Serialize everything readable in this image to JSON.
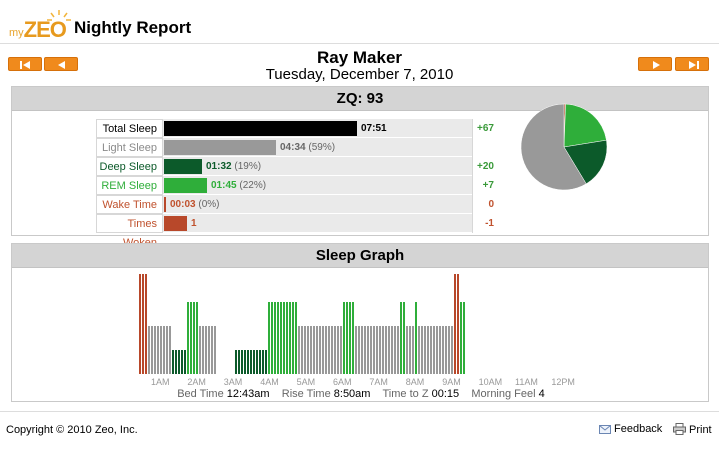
{
  "app": {
    "logo_prefix": "my",
    "logo_brand": "ZEO",
    "title": "Nightly Report"
  },
  "person": "Ray Maker",
  "date": "Tuesday, December 7, 2010",
  "nav": {
    "first_icon": "skip-back-icon",
    "prev_icon": "arrow-left-icon",
    "next_icon": "arrow-right-icon",
    "last_icon": "skip-forward-icon",
    "button_color": "#f08a1c"
  },
  "zq": {
    "label": "ZQ: 93"
  },
  "stats": [
    {
      "label": "Total Sleep",
      "value": "07:51",
      "pct": "",
      "delta": "+67",
      "color": "#000000",
      "label_color": "#000000",
      "delta_color": "#3a9a3a",
      "fraction": 1.0
    },
    {
      "label": "Light Sleep",
      "value": "04:34",
      "pct": "(59%)",
      "delta": "",
      "color": "#999999",
      "label_color": "#8a8a8a",
      "delta_color": "#3a9a3a",
      "fraction": 0.58
    },
    {
      "label": "Deep Sleep",
      "value": "01:32",
      "pct": "(19%)",
      "delta": "+20",
      "color": "#0c5a2a",
      "label_color": "#0c5a2a",
      "delta_color": "#3a9a3a",
      "fraction": 0.195
    },
    {
      "label": "REM Sleep",
      "value": "01:45",
      "pct": "(22%)",
      "delta": "+7",
      "color": "#2fae3a",
      "label_color": "#2fae3a",
      "delta_color": "#3a9a3a",
      "fraction": 0.223
    },
    {
      "label": "Wake Time",
      "value": "00:03",
      "pct": "(0%)",
      "delta": "0",
      "color": "#b8482a",
      "label_color": "#c0522e",
      "delta_color": "#c0522e",
      "fraction": 0.006
    },
    {
      "label": "Times Woken",
      "value": "1",
      "pct": "",
      "delta": "-1",
      "color": "#b8482a",
      "label_color": "#c0522e",
      "delta_color": "#c0522e",
      "fraction": 0.12
    }
  ],
  "pie": {
    "slices": [
      {
        "name": "Wake",
        "value": 0.6,
        "color": "#b8482a"
      },
      {
        "name": "REM",
        "value": 22,
        "color": "#2fae3a"
      },
      {
        "name": "Deep",
        "value": 19,
        "color": "#0c5a2a"
      },
      {
        "name": "Light",
        "value": 59,
        "color": "#999999"
      }
    ]
  },
  "graph": {
    "title": "Sleep Graph",
    "x_labels": [
      "1AM",
      "2AM",
      "3AM",
      "4AM",
      "5AM",
      "6AM",
      "7AM",
      "8AM",
      "9AM",
      "10AM",
      "11AM",
      "12PM"
    ],
    "levels": {
      "wake": 1.0,
      "rem": 0.72,
      "light": 0.48,
      "deep": 0.24
    },
    "colors": {
      "wake": "#b8482a",
      "rem": "#2fae3a",
      "light": "#999999",
      "deep": "#0c5a2a"
    },
    "sequence": [
      "W",
      "W",
      "W",
      "L",
      "L",
      "L",
      "L",
      "L",
      "L",
      "L",
      "L",
      "D",
      "D",
      "D",
      "D",
      "D",
      "R",
      "R",
      "R",
      "R",
      "L",
      "L",
      "L",
      "L",
      "L",
      "L",
      "",
      "",
      "",
      "",
      "",
      "",
      "D",
      "D",
      "D",
      "D",
      "D",
      "D",
      "D",
      "D",
      "D",
      "D",
      "D",
      "R",
      "R",
      "R",
      "R",
      "R",
      "R",
      "R",
      "R",
      "R",
      "R",
      "L",
      "L",
      "L",
      "L",
      "L",
      "L",
      "L",
      "L",
      "L",
      "L",
      "L",
      "L",
      "L",
      "L",
      "L",
      "R",
      "R",
      "R",
      "R",
      "L",
      "L",
      "L",
      "L",
      "L",
      "L",
      "L",
      "L",
      "L",
      "L",
      "L",
      "L",
      "L",
      "L",
      "L",
      "R",
      "R",
      "L",
      "L",
      "L",
      "R",
      "L",
      "L",
      "L",
      "L",
      "L",
      "L",
      "L",
      "L",
      "L",
      "L",
      "L",
      "L",
      "W",
      "W",
      "R",
      "R"
    ]
  },
  "summary": [
    {
      "label": "Bed Time",
      "value": "12:43am"
    },
    {
      "label": "Rise Time",
      "value": "8:50am"
    },
    {
      "label": "Time to Z",
      "value": "00:15"
    },
    {
      "label": "Morning Feel",
      "value": "4"
    }
  ],
  "footer": {
    "copyright": "Copyright © 2010 Zeo, Inc.",
    "feedback": "Feedback",
    "print": "Print",
    "feedback_icon": "mail-icon",
    "print_icon": "printer-icon"
  }
}
